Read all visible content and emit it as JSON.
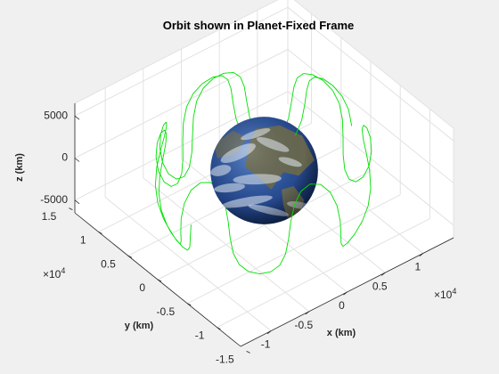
{
  "chart_data": {
    "type": "3d-line",
    "title": "Orbit shown in Planet-Fixed Frame",
    "xlabel": "x (km)",
    "ylabel": "y (km)",
    "zlabel": "z (km)",
    "x_ticks": [
      "-1",
      "-0.5",
      "0",
      "0.5",
      "1"
    ],
    "x_ticks_values": [
      -10000,
      -5000,
      0,
      5000,
      10000
    ],
    "y_ticks": [
      "-1.5",
      "-1",
      "-0.5",
      "0",
      "0.5",
      "1",
      "1.5"
    ],
    "y_ticks_values": [
      -15000,
      -10000,
      -5000,
      0,
      5000,
      10000,
      15000
    ],
    "z_ticks": [
      "-5000",
      "0",
      "5000"
    ],
    "z_ticks_values": [
      -5000,
      0,
      5000
    ],
    "x_exponent": {
      "base": "×10",
      "power": "4"
    },
    "y_exponent": {
      "base": "×10",
      "power": "4"
    },
    "xlim": [
      -14000,
      14000
    ],
    "ylim": [
      -14000,
      14000
    ],
    "zlim": [
      -6500,
      6500
    ],
    "grid": true,
    "view": {
      "azimuth": -37.5,
      "elevation": 30
    },
    "series": [
      {
        "style": "line",
        "color": "#00e000",
        "orbit_radius_km": 11500,
        "inclination_deg": 28,
        "revolutions": 9
      }
    ],
    "planet": {
      "name": "Earth",
      "radius_km": 6378,
      "ocean_color": "#274a8e",
      "land_color": "#6e6a4a",
      "cloud_color": "#e8eef5"
    },
    "colors": {
      "background": "#f0f0f0",
      "axes_face": "#ffffff",
      "grid": "#e2e2e2",
      "axis_line": "#262626",
      "orbit": "#00e000"
    }
  }
}
